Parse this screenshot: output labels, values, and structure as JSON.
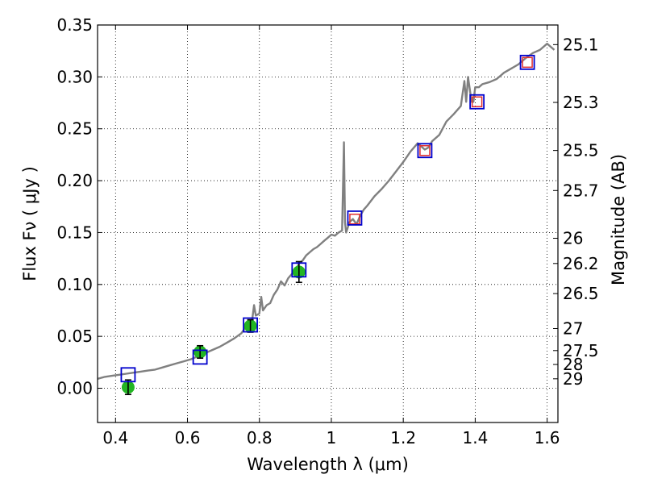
{
  "chart_data": {
    "type": "scatter",
    "title": "",
    "xlabel": "Wavelength  λ (μm)",
    "ylabel": "Flux  Fν  ( μJy )",
    "y2label": "Magnitude (AB)",
    "xlim": [
      0.35,
      1.63
    ],
    "ylim": [
      -0.033,
      0.35
    ],
    "grid": true,
    "x_ticks": [
      0.4,
      0.6,
      0.8,
      1.0,
      1.2,
      1.4,
      1.6
    ],
    "x_tick_labels": [
      "0.4",
      "0.6",
      "0.8",
      "1",
      "1.2",
      "1.4",
      "1.6"
    ],
    "y_ticks": [
      0.0,
      0.05,
      0.1,
      0.15,
      0.2,
      0.25,
      0.3,
      0.35
    ],
    "y_tick_labels": [
      "0.00",
      "0.05",
      "0.10",
      "0.15",
      "0.20",
      "0.25",
      "0.30",
      "0.35"
    ],
    "y2_ticks": [
      {
        "label": "25.1",
        "flux": 0.3311
      },
      {
        "label": "25.3",
        "flux": 0.2754
      },
      {
        "label": "25.5",
        "flux": 0.2291
      },
      {
        "label": "25.7",
        "flux": 0.1905
      },
      {
        "label": "26",
        "flux": 0.1445
      },
      {
        "label": "26.2",
        "flux": 0.1202
      },
      {
        "label": "26.5",
        "flux": 0.0912
      },
      {
        "label": "27",
        "flux": 0.0575
      },
      {
        "label": "27.5",
        "flux": 0.0363
      },
      {
        "label": "28",
        "flux": 0.0229
      },
      {
        "label": "29",
        "flux": 0.0091
      }
    ],
    "series": [
      {
        "name": "model spectrum",
        "kind": "line",
        "color": "#808080",
        "x": [
          0.35,
          0.37,
          0.39,
          0.41,
          0.43,
          0.45,
          0.47,
          0.49,
          0.51,
          0.53,
          0.55,
          0.57,
          0.59,
          0.61,
          0.63,
          0.65,
          0.67,
          0.69,
          0.71,
          0.73,
          0.75,
          0.76,
          0.77,
          0.78,
          0.785,
          0.79,
          0.8,
          0.805,
          0.81,
          0.82,
          0.83,
          0.84,
          0.85,
          0.86,
          0.87,
          0.88,
          0.89,
          0.9,
          0.91,
          0.92,
          0.93,
          0.94,
          0.95,
          0.96,
          0.97,
          0.98,
          0.99,
          1.0,
          1.01,
          1.02,
          1.03,
          1.035,
          1.038,
          1.041,
          1.045,
          1.05,
          1.06,
          1.07,
          1.08,
          1.09,
          1.1,
          1.12,
          1.14,
          1.16,
          1.18,
          1.2,
          1.22,
          1.24,
          1.26,
          1.27,
          1.28,
          1.3,
          1.32,
          1.34,
          1.36,
          1.37,
          1.375,
          1.38,
          1.39,
          1.395,
          1.4,
          1.41,
          1.42,
          1.44,
          1.46,
          1.48,
          1.5,
          1.52,
          1.54,
          1.56,
          1.58,
          1.6,
          1.62
        ],
        "y": [
          0.009,
          0.011,
          0.012,
          0.013,
          0.014,
          0.015,
          0.016,
          0.017,
          0.018,
          0.02,
          0.022,
          0.024,
          0.026,
          0.028,
          0.031,
          0.034,
          0.037,
          0.04,
          0.044,
          0.048,
          0.053,
          0.058,
          0.062,
          0.066,
          0.08,
          0.07,
          0.072,
          0.088,
          0.075,
          0.08,
          0.082,
          0.09,
          0.095,
          0.103,
          0.099,
          0.106,
          0.11,
          0.114,
          0.12,
          0.123,
          0.128,
          0.131,
          0.134,
          0.136,
          0.139,
          0.142,
          0.145,
          0.148,
          0.147,
          0.15,
          0.152,
          0.237,
          0.16,
          0.15,
          0.154,
          0.16,
          0.163,
          0.158,
          0.166,
          0.172,
          0.176,
          0.185,
          0.192,
          0.2,
          0.209,
          0.218,
          0.228,
          0.236,
          0.23,
          0.232,
          0.238,
          0.244,
          0.257,
          0.264,
          0.272,
          0.296,
          0.276,
          0.3,
          0.276,
          0.276,
          0.29,
          0.29,
          0.293,
          0.295,
          0.298,
          0.304,
          0.308,
          0.312,
          0.318,
          0.323,
          0.326,
          0.332,
          0.326
        ]
      },
      {
        "name": "observed photometry",
        "kind": "points",
        "color": "#22b522",
        "x": [
          0.435,
          0.635,
          0.775,
          0.91
        ],
        "y": [
          0.001,
          0.035,
          0.06,
          0.112
        ],
        "err": [
          0.007,
          0.006,
          0.006,
          0.01
        ]
      },
      {
        "name": "model photometry (blue squares)",
        "kind": "squares",
        "color": "#0000cc",
        "x": [
          0.435,
          0.635,
          0.775,
          0.91,
          1.065,
          1.26,
          1.405,
          1.545
        ],
        "y": [
          0.013,
          0.03,
          0.061,
          0.114,
          0.164,
          0.229,
          0.276,
          0.314
        ]
      },
      {
        "name": "model photometry (red squares)",
        "kind": "squares",
        "color": "#e03030",
        "x": [
          1.065,
          1.26,
          1.405,
          1.545
        ],
        "y": [
          0.163,
          0.229,
          0.276,
          0.314
        ]
      }
    ]
  }
}
